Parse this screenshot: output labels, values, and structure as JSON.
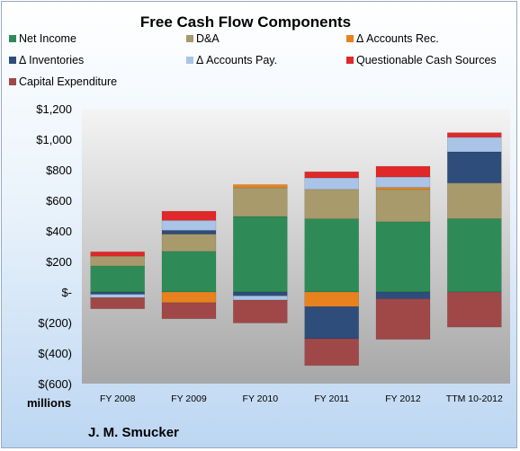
{
  "chart_data": {
    "type": "bar",
    "stacked": true,
    "title": "Free Cash Flow Components",
    "units_label": "millions",
    "company": "J. M. Smucker",
    "categories": [
      "FY 2008",
      "FY 2009",
      "FY 2010",
      "FY 2011",
      "FY 2012",
      "TTM 10-2012"
    ],
    "ylim": [
      -600,
      1200
    ],
    "yticks": [
      1200,
      1000,
      800,
      600,
      400,
      200,
      0,
      -200,
      -400,
      -600
    ],
    "ytick_labels": [
      "$1,200",
      "$1,000",
      "$800",
      "$600",
      "$400",
      "$200",
      "$-",
      "$(200)",
      "$(400)",
      "$(600)"
    ],
    "grid": false,
    "legend_position": "top",
    "series": [
      {
        "name": "Net Income",
        "color": "#2e8b57",
        "values": [
          170,
          266,
          494,
          479,
          460,
          480
        ]
      },
      {
        "name": "D&A",
        "color": "#a89a6a",
        "values": [
          65,
          113,
          189,
          193,
          212,
          233
        ]
      },
      {
        "name": "Δ Accounts Rec.",
        "color": "#e8821e",
        "values": [
          0,
          -70,
          20,
          -96,
          13,
          0
        ]
      },
      {
        "name": "Δ Inventories",
        "color": "#2f4d7a",
        "values": [
          -15,
          25,
          -25,
          -210,
          -45,
          205
        ]
      },
      {
        "name": "Δ Accounts Pay.",
        "color": "#a9c4e6",
        "values": [
          -22,
          65,
          -28,
          75,
          68,
          95
        ]
      },
      {
        "name": "Questionable Cash Sources",
        "color": "#e02828",
        "values": [
          28,
          60,
          0,
          40,
          70,
          30
        ]
      },
      {
        "name": "Capital Expenditure",
        "color": "#a04848",
        "values": [
          -73,
          -105,
          -150,
          -175,
          -265,
          -230
        ]
      }
    ]
  }
}
